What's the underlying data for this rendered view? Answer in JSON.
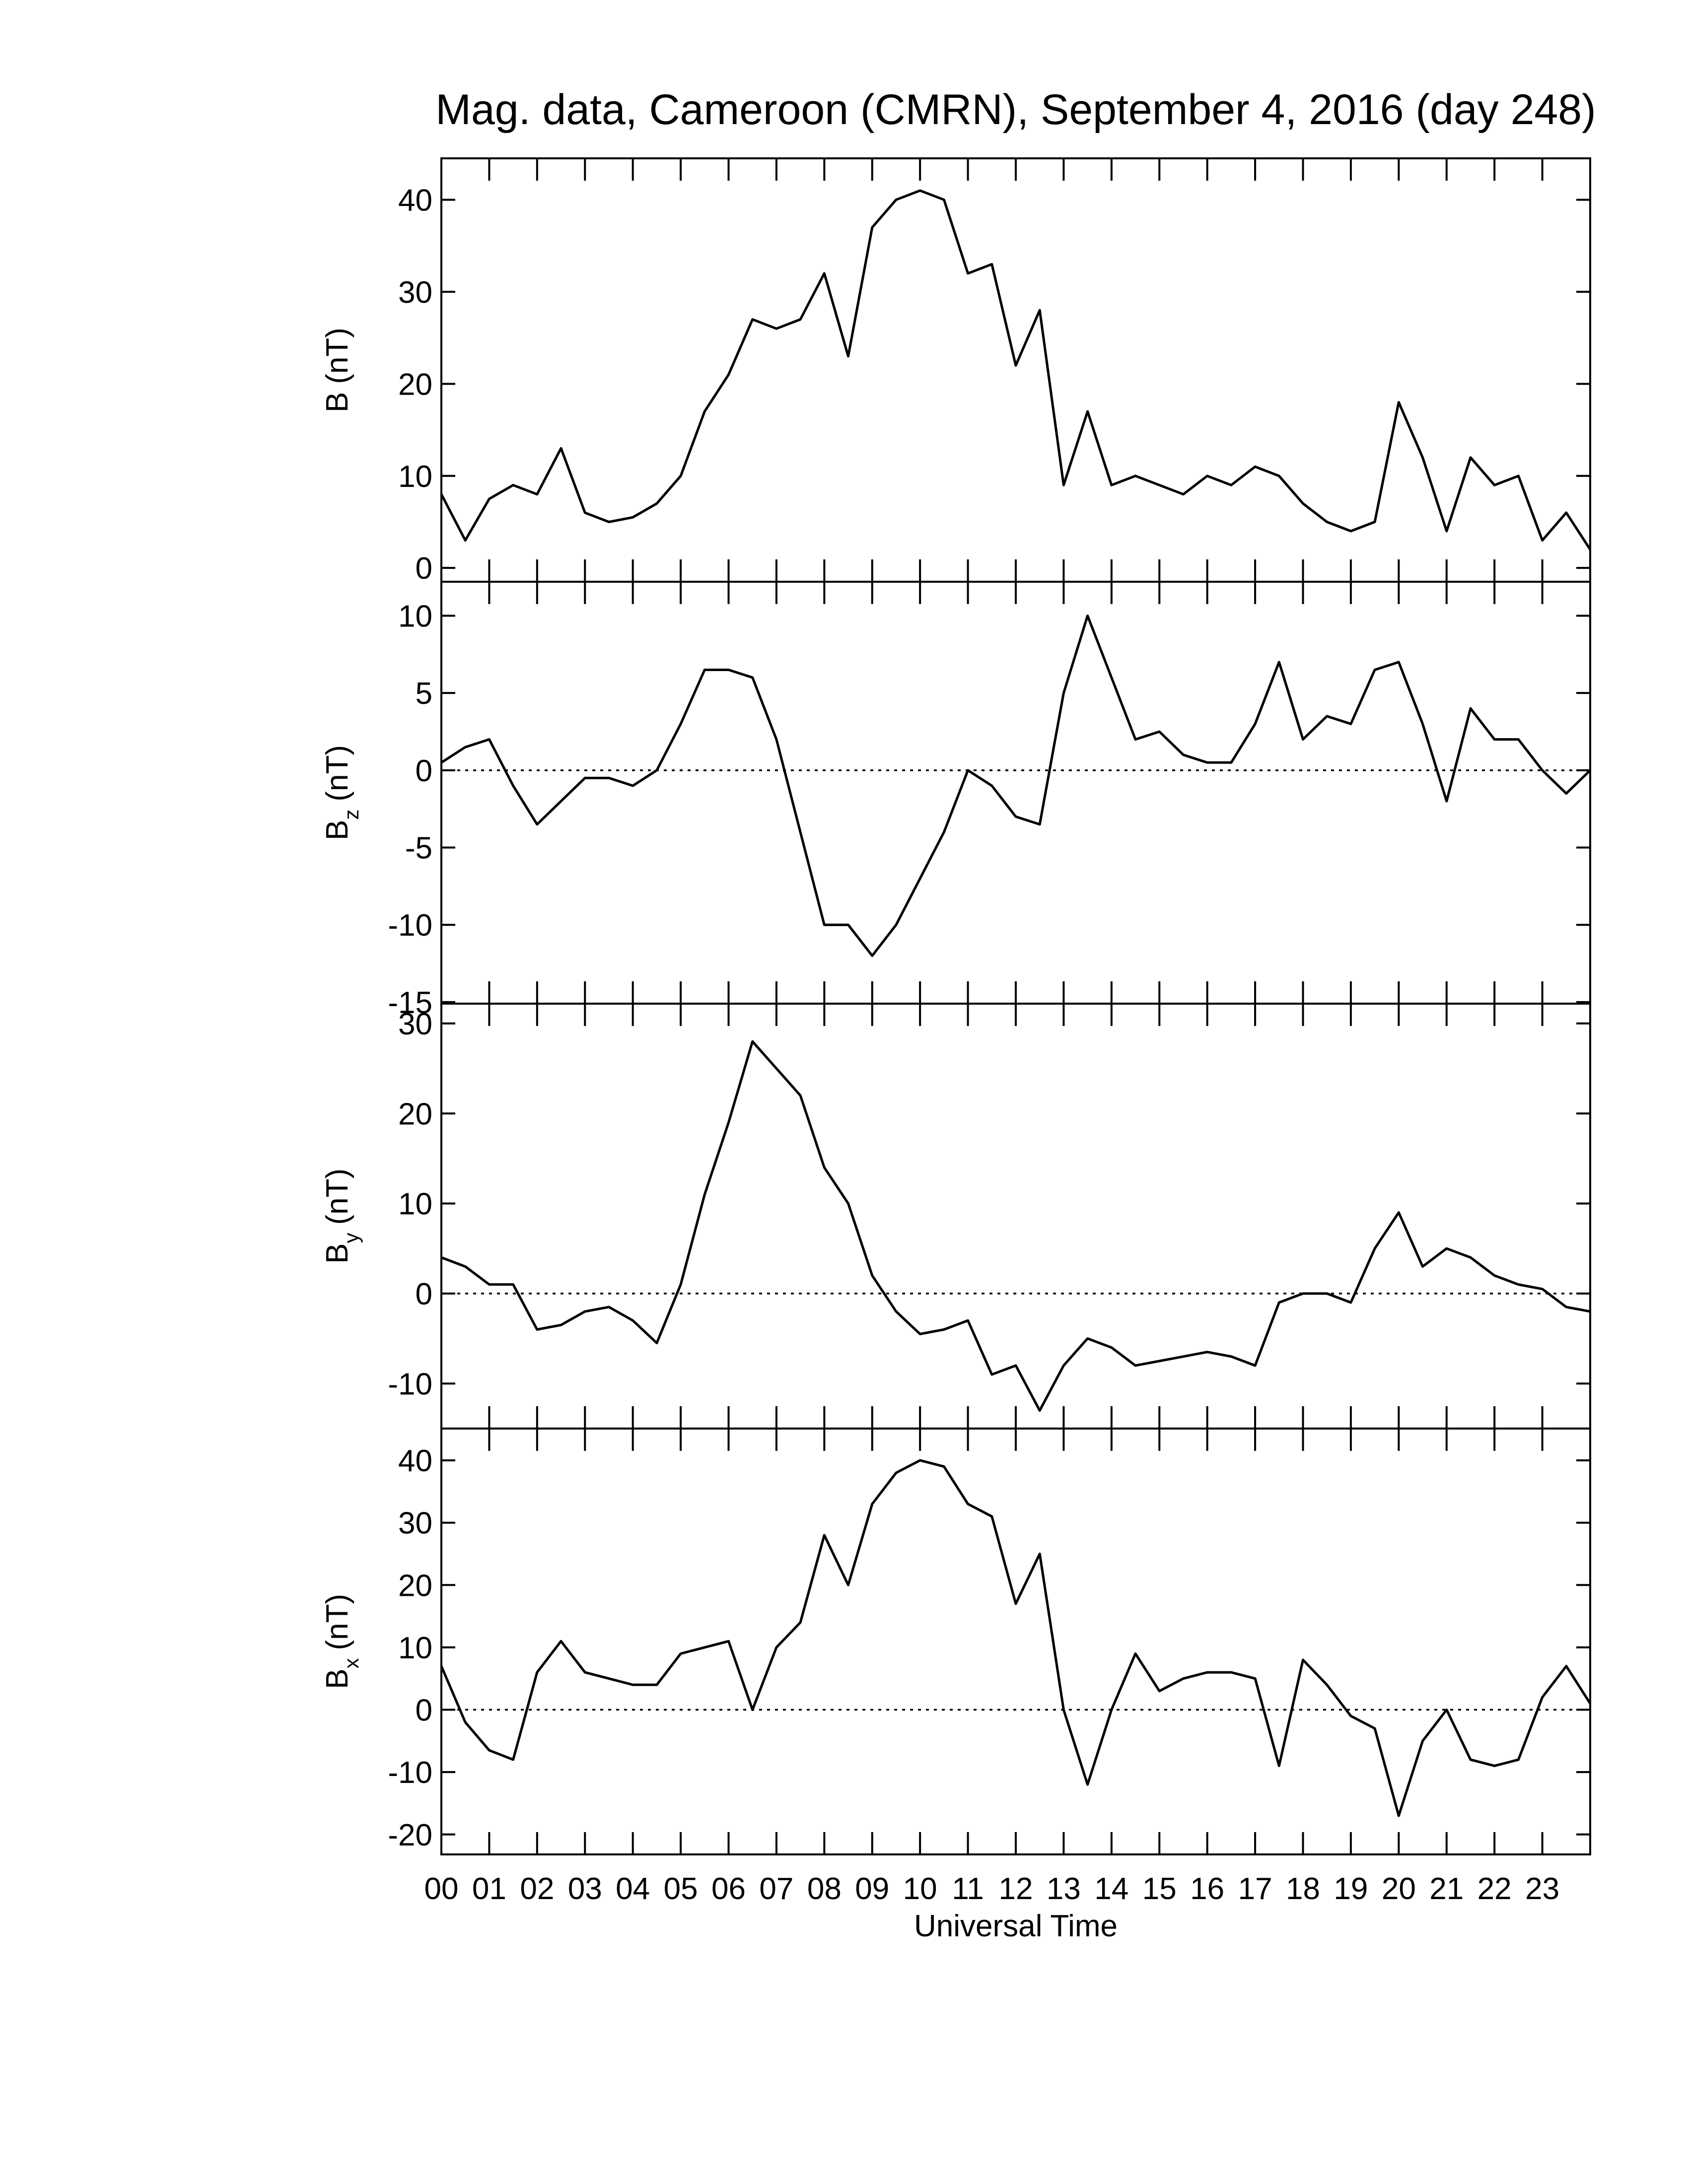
{
  "title": "Mag. data, Cameroon (CMRN), September 4, 2016 (day 248)",
  "chart_data": [
    {
      "type": "line",
      "ylabel": {
        "base": "B",
        "unit": "(nT)"
      },
      "x": [
        0,
        0.5,
        1,
        1.5,
        2,
        2.5,
        3,
        3.5,
        4,
        4.5,
        5,
        5.5,
        6,
        6.5,
        7,
        7.5,
        8,
        8.5,
        9,
        9.5,
        10,
        10.5,
        11,
        11.5,
        12,
        12.5,
        13,
        13.5,
        14,
        14.5,
        15,
        15.5,
        16,
        16.5,
        17,
        17.5,
        18,
        18.5,
        19,
        19.5,
        20,
        20.5,
        21,
        21.5,
        22,
        22.5,
        23,
        23.5,
        24
      ],
      "series": [
        {
          "color": "#000000",
          "values": [
            8,
            3,
            7.5,
            9,
            8,
            13,
            6,
            5,
            5.5,
            7,
            10,
            17,
            21,
            27,
            26,
            27,
            32,
            23,
            37,
            40,
            41,
            40,
            32,
            33,
            22,
            28,
            9,
            17,
            9,
            10,
            9,
            8,
            10,
            9,
            11,
            10,
            7,
            5,
            4,
            5,
            18,
            12,
            4,
            12,
            9,
            10,
            3,
            6,
            2
          ]
        }
      ],
      "xlim": [
        0,
        24
      ],
      "ylim": [
        -1.5,
        44.5
      ],
      "yticks": [
        0,
        10,
        20,
        30,
        40
      ],
      "zero_line": false
    },
    {
      "type": "line",
      "ylabel": {
        "base": "B",
        "sub": "z",
        "unit": "(nT)"
      },
      "x": [
        0,
        0.5,
        1,
        1.5,
        2,
        2.5,
        3,
        3.5,
        4,
        4.5,
        5,
        5.5,
        6,
        6.5,
        7,
        7.5,
        8,
        8.5,
        9,
        9.5,
        10,
        10.5,
        11,
        11.5,
        12,
        12.5,
        13,
        13.5,
        14,
        14.5,
        15,
        15.5,
        16,
        16.5,
        17,
        17.5,
        18,
        18.5,
        19,
        19.5,
        20,
        20.5,
        21,
        21.5,
        22,
        22.5,
        23,
        23.5,
        24
      ],
      "series": [
        {
          "color": "#000000",
          "values": [
            0.5,
            1.5,
            2,
            -1,
            -3.5,
            -2,
            -0.5,
            -0.5,
            -1,
            0,
            3,
            6.5,
            6.5,
            6,
            2,
            -4,
            -10,
            -10,
            -12,
            -10,
            -7,
            -4,
            0,
            -1,
            -3,
            -3.5,
            5,
            10,
            6,
            2,
            2.5,
            1,
            0.5,
            0.5,
            3,
            7,
            2,
            3.5,
            3,
            6.5,
            7,
            3,
            -2,
            4,
            2,
            2,
            0,
            -1.5,
            0
          ]
        }
      ],
      "xlim": [
        0,
        24
      ],
      "ylim": [
        -15.1,
        12.2
      ],
      "yticks": [
        -15,
        -10,
        -5,
        0,
        5,
        10
      ],
      "zero_line": true
    },
    {
      "type": "line",
      "ylabel": {
        "base": "B",
        "sub": "y",
        "unit": "(nT)"
      },
      "x": [
        0,
        0.5,
        1,
        1.5,
        2,
        2.5,
        3,
        3.5,
        4,
        4.5,
        5,
        5.5,
        6,
        6.5,
        7,
        7.5,
        8,
        8.5,
        9,
        9.5,
        10,
        10.5,
        11,
        11.5,
        12,
        12.5,
        13,
        13.5,
        14,
        14.5,
        15,
        15.5,
        16,
        16.5,
        17,
        17.5,
        18,
        18.5,
        19,
        19.5,
        20,
        20.5,
        21,
        21.5,
        22,
        22.5,
        23,
        23.5,
        24
      ],
      "series": [
        {
          "color": "#000000",
          "values": [
            4,
            3,
            1,
            1,
            -4,
            -3.5,
            -2,
            -1.5,
            -3,
            -5.5,
            1,
            11,
            19,
            28,
            25,
            22,
            14,
            10,
            2,
            -2,
            -4.5,
            -4,
            -3,
            -9,
            -8,
            -13,
            -8,
            -5,
            -6,
            -8,
            -7.5,
            -7,
            -6.5,
            -7,
            -8,
            -1,
            0,
            0,
            -1,
            5,
            9,
            3,
            5,
            4,
            2,
            1,
            0.5,
            -1.5,
            -2
          ]
        }
      ],
      "xlim": [
        0,
        24
      ],
      "ylim": [
        -15,
        32.2
      ],
      "yticks": [
        -10,
        0,
        10,
        20,
        30
      ],
      "zero_line": true
    },
    {
      "type": "line",
      "ylabel": {
        "base": "B",
        "sub": "x",
        "unit": "(nT)"
      },
      "xlabel": "Universal Time",
      "x": [
        0,
        0.5,
        1,
        1.5,
        2,
        2.5,
        3,
        3.5,
        4,
        4.5,
        5,
        5.5,
        6,
        6.5,
        7,
        7.5,
        8,
        8.5,
        9,
        9.5,
        10,
        10.5,
        11,
        11.5,
        12,
        12.5,
        13,
        13.5,
        14,
        14.5,
        15,
        15.5,
        16,
        16.5,
        17,
        17.5,
        18,
        18.5,
        19,
        19.5,
        20,
        20.5,
        21,
        21.5,
        22,
        22.5,
        23,
        23.5,
        24
      ],
      "series": [
        {
          "color": "#000000",
          "values": [
            7,
            -2,
            -6.5,
            -8,
            6,
            11,
            6,
            5,
            4,
            4,
            9,
            10,
            11,
            0,
            10,
            14,
            28,
            20,
            33,
            38,
            40,
            39,
            33,
            31,
            17,
            25,
            0,
            -12,
            0,
            9,
            3,
            5,
            6,
            6,
            5,
            -9,
            8,
            4,
            -1,
            -3,
            -17,
            -5,
            0,
            -8,
            -9,
            -8,
            2,
            7,
            1
          ]
        }
      ],
      "xlim": [
        0,
        24
      ],
      "ylim": [
        -23.2,
        45.1
      ],
      "yticks": [
        -20,
        -10,
        0,
        10,
        20,
        30,
        40
      ],
      "zero_line": true,
      "xticks": [
        {
          "value": 0,
          "label": "00"
        },
        {
          "value": 1,
          "label": "01"
        },
        {
          "value": 2,
          "label": "02"
        },
        {
          "value": 3,
          "label": "03"
        },
        {
          "value": 4,
          "label": "04"
        },
        {
          "value": 5,
          "label": "05"
        },
        {
          "value": 6,
          "label": "06"
        },
        {
          "value": 7,
          "label": "07"
        },
        {
          "value": 8,
          "label": "08"
        },
        {
          "value": 9,
          "label": "09"
        },
        {
          "value": 10,
          "label": "10"
        },
        {
          "value": 11,
          "label": "11"
        },
        {
          "value": 12,
          "label": "12"
        },
        {
          "value": 13,
          "label": "13"
        },
        {
          "value": 14,
          "label": "14"
        },
        {
          "value": 15,
          "label": "15"
        },
        {
          "value": 16,
          "label": "16"
        },
        {
          "value": 17,
          "label": "17"
        },
        {
          "value": 18,
          "label": "18"
        },
        {
          "value": 19,
          "label": "19"
        },
        {
          "value": 20,
          "label": "20"
        },
        {
          "value": 21,
          "label": "21"
        },
        {
          "value": 22,
          "label": "22"
        },
        {
          "value": 23,
          "label": "23"
        }
      ]
    }
  ]
}
